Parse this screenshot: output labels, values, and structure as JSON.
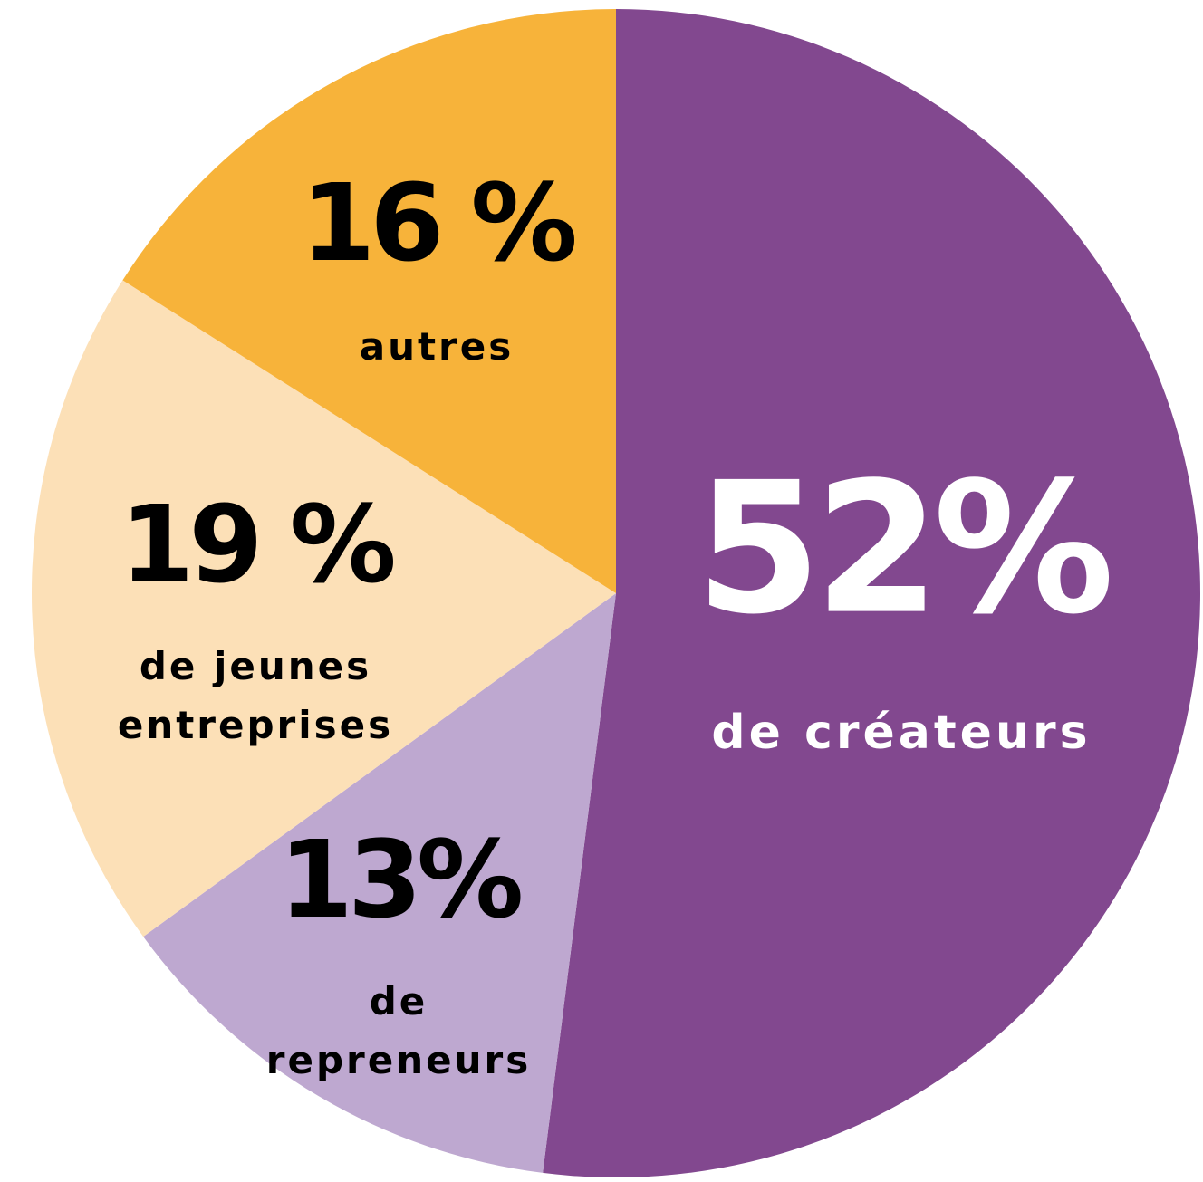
{
  "chart_data": {
    "type": "pie",
    "categories": [
      "de créateurs",
      "de repreneurs",
      "de jeunes entreprises",
      "autres"
    ],
    "values": [
      52,
      13,
      19,
      16
    ],
    "value_labels": [
      "52%",
      "13%",
      "19 %",
      "16 %"
    ],
    "colors": [
      "#82488f",
      "#bea8d0",
      "#fce0b7",
      "#f7b33a"
    ]
  }
}
